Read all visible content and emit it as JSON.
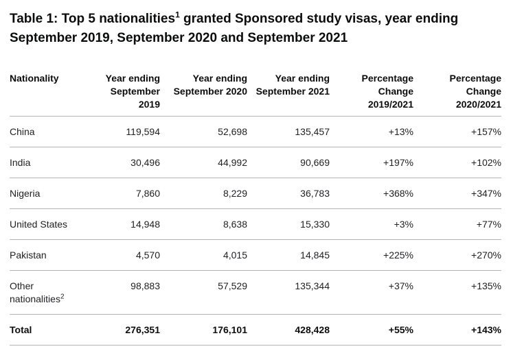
{
  "title": {
    "part1": "Table 1: Top 5 nationalities",
    "footnote_marker": "1",
    "part2": " granted Sponsored study visas, year ending September 2019, September 2020 and September 2021"
  },
  "table": {
    "columns": [
      "Nationality",
      "Year ending\nSeptember 2019",
      "Year ending\nSeptember 2020",
      "Year ending\nSeptember 2021",
      "Percentage\nChange\n2019/2021",
      "Percentage\nChange\n2020/2021"
    ],
    "rows": [
      {
        "name": "China",
        "footnote": "",
        "values": [
          "119,594",
          "52,698",
          "135,457",
          "+13%",
          "+157%"
        ]
      },
      {
        "name": "India",
        "footnote": "",
        "values": [
          "30,496",
          "44,992",
          "90,669",
          "+197%",
          "+102%"
        ]
      },
      {
        "name": "Nigeria",
        "footnote": "",
        "values": [
          "7,860",
          "8,229",
          "36,783",
          "+368%",
          "+347%"
        ]
      },
      {
        "name": "United States",
        "footnote": "",
        "values": [
          "14,948",
          "8,638",
          "15,330",
          "+3%",
          "+77%"
        ]
      },
      {
        "name": "Pakistan",
        "footnote": "",
        "values": [
          "4,570",
          "4,015",
          "14,845",
          "+225%",
          "+270%"
        ]
      },
      {
        "name": "Other nationalities",
        "footnote": "2",
        "values": [
          "98,883",
          "57,529",
          "135,344",
          "+37%",
          "+135%"
        ]
      }
    ],
    "total": {
      "name": "Total",
      "values": [
        "276,351",
        "176,101",
        "428,428",
        "+55%",
        "+143%"
      ]
    }
  },
  "colors": {
    "text": "#0b0c0c",
    "body_text": "#202124",
    "border": "#b1b4b6",
    "background": "#ffffff"
  }
}
